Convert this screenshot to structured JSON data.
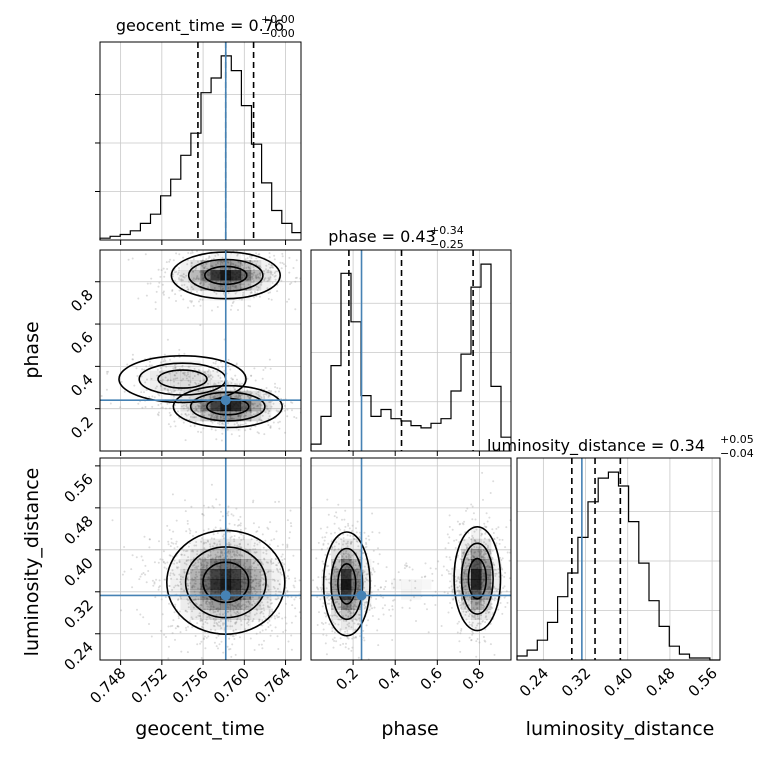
{
  "chart_data": {
    "type": "corner",
    "parameters": [
      {
        "name": "geocent_time",
        "title_label": "geocent_time",
        "title_value": "0.76",
        "title_plus": "+0.00",
        "title_minus": "−0.00",
        "range": [
          0.746,
          0.7655
        ],
        "ticks": [
          "0.748",
          "0.752",
          "0.756",
          "0.760",
          "0.764"
        ],
        "tick_values": [
          0.748,
          0.752,
          0.756,
          0.76,
          0.764
        ],
        "quantiles": [
          0.7555,
          0.7582,
          0.7609
        ],
        "injected": 0.7582,
        "hist_edges_start": 0.746,
        "hist_bin_width": 0.00098,
        "hist_counts": [
          0.01,
          0.02,
          0.03,
          0.05,
          0.09,
          0.14,
          0.24,
          0.33,
          0.46,
          0.58,
          0.8,
          0.88,
          1.0,
          0.92,
          0.73,
          0.52,
          0.31,
          0.16,
          0.09,
          0.04
        ]
      },
      {
        "name": "phase",
        "title_label": "phase",
        "title_value": "0.43",
        "title_plus": "+0.34",
        "title_minus": "−0.25",
        "range": [
          0.0,
          0.95
        ],
        "ticks": [
          "0.2",
          "0.4",
          "0.6",
          "0.8"
        ],
        "tick_values": [
          0.2,
          0.4,
          0.6,
          0.8
        ],
        "quantiles": [
          0.18,
          0.43,
          0.77
        ],
        "injected": 0.24,
        "hist_edges_start": 0.0,
        "hist_bin_width": 0.0475,
        "hist_counts": [
          0.03,
          0.15,
          0.37,
          0.77,
          0.56,
          0.24,
          0.15,
          0.18,
          0.14,
          0.13,
          0.11,
          0.1,
          0.12,
          0.14,
          0.26,
          0.42,
          0.71,
          0.81,
          0.28,
          0.06
        ]
      },
      {
        "name": "luminosity_distance",
        "title_label": "luminosity_distance",
        "title_value": "0.34",
        "title_plus": "+0.05",
        "title_minus": "−0.04",
        "range": [
          0.19,
          0.575
        ],
        "ticks": [
          "0.24",
          "0.32",
          "0.40",
          "0.48",
          "0.56"
        ],
        "tick_values": [
          0.24,
          0.32,
          0.4,
          0.48,
          0.56
        ],
        "quantiles": [
          0.294,
          0.338,
          0.386
        ],
        "injected": 0.313,
        "hist_edges_start": 0.19,
        "hist_bin_width": 0.01925,
        "hist_counts": [
          0.02,
          0.05,
          0.1,
          0.19,
          0.32,
          0.44,
          0.62,
          0.8,
          0.92,
          0.95,
          0.88,
          0.7,
          0.49,
          0.3,
          0.17,
          0.07,
          0.03,
          0.01,
          0.01,
          0.0
        ]
      }
    ],
    "xlabels": [
      "geocent_time",
      "phase",
      "luminosity_distance"
    ],
    "ylabels": [
      "",
      "phase",
      "luminosity_distance"
    ],
    "contour_levels": 3,
    "grid": true,
    "truth_color": "#4682b4",
    "hist_color": "#000000",
    "scatter_color": "#9a9a9a",
    "density_color": "#000000",
    "joint_modes": {
      "geocent_time_vs_phase": [
        {
          "x": 0.7582,
          "y": 0.83,
          "sx": 0.0024,
          "sy": 0.05,
          "w": 1.0
        },
        {
          "x": 0.7584,
          "y": 0.21,
          "sx": 0.0024,
          "sy": 0.045,
          "w": 1.0
        },
        {
          "x": 0.754,
          "y": 0.34,
          "sx": 0.0028,
          "sy": 0.05,
          "w": 0.35
        }
      ],
      "geocent_time_vs_luminosity_distance": [
        {
          "x": 0.7582,
          "y": 0.338,
          "sx": 0.0026,
          "sy": 0.045,
          "w": 1.0
        }
      ],
      "phase_vs_luminosity_distance": [
        {
          "x": 0.17,
          "y": 0.335,
          "sx": 0.05,
          "sy": 0.045,
          "w": 1.0
        },
        {
          "x": 0.79,
          "y": 0.345,
          "sx": 0.05,
          "sy": 0.045,
          "w": 1.0
        },
        {
          "x": 0.48,
          "y": 0.33,
          "sx": 0.12,
          "sy": 0.03,
          "w": 0.15
        }
      ]
    }
  }
}
